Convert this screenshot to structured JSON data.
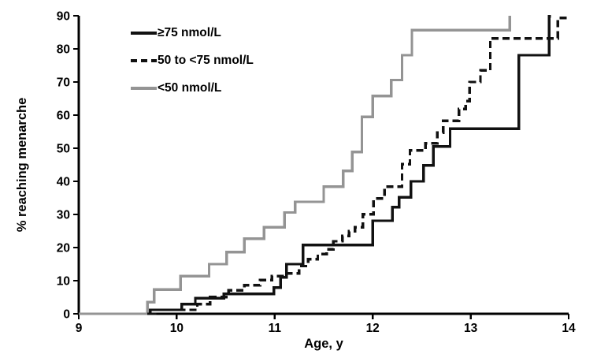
{
  "figure": {
    "background_color": "#ffffff",
    "axis_color": "#000000"
  },
  "chart_data": {
    "type": "line",
    "variant": "kaplan-meier-step",
    "title": "",
    "xlabel": "Age, y",
    "ylabel": "% reaching menarche",
    "xlim": [
      9,
      14
    ],
    "ylim": [
      0,
      90
    ],
    "xticks": [
      9,
      10,
      11,
      12,
      13,
      14
    ],
    "yticks": [
      0,
      10,
      20,
      30,
      40,
      50,
      60,
      70,
      80,
      90
    ],
    "grid": false,
    "legend": {
      "position": "inside-top-left"
    },
    "series": [
      {
        "name": "≥75 nmol/L",
        "line": "solid",
        "color": "#111111",
        "start_age": 9.7,
        "end_age": 13.82,
        "steps": [
          [
            9.73,
            1.2
          ],
          [
            10.05,
            2.9
          ],
          [
            10.19,
            4.7
          ],
          [
            10.48,
            6.0
          ],
          [
            10.99,
            7.9
          ],
          [
            11.06,
            11.0
          ],
          [
            11.12,
            15.0
          ],
          [
            11.29,
            20.8
          ],
          [
            12.0,
            28.1
          ],
          [
            12.2,
            32.2
          ],
          [
            12.27,
            35.2
          ],
          [
            12.39,
            40.0
          ],
          [
            12.52,
            44.8
          ],
          [
            12.62,
            50.5
          ],
          [
            12.79,
            55.9
          ],
          [
            13.49,
            78.1
          ],
          [
            13.8,
            89.8
          ]
        ]
      },
      {
        "name": "50 to <75 nmol/L",
        "line": "dashed",
        "color": "#111111",
        "start_age": 9.72,
        "end_age": 14.0,
        "steps": [
          [
            9.78,
            1.2
          ],
          [
            10.21,
            2.9
          ],
          [
            10.34,
            5.1
          ],
          [
            10.53,
            7.1
          ],
          [
            10.69,
            8.6
          ],
          [
            10.85,
            10.2
          ],
          [
            10.97,
            11.4
          ],
          [
            11.1,
            12.2
          ],
          [
            11.25,
            14.4
          ],
          [
            11.34,
            16.5
          ],
          [
            11.44,
            18.0
          ],
          [
            11.53,
            19.5
          ],
          [
            11.6,
            21.9
          ],
          [
            11.69,
            23.5
          ],
          [
            11.76,
            24.9
          ],
          [
            11.82,
            26.1
          ],
          [
            11.9,
            30.1
          ],
          [
            12.01,
            34.8
          ],
          [
            12.12,
            38.4
          ],
          [
            12.3,
            45.2
          ],
          [
            12.38,
            49.3
          ],
          [
            12.54,
            51.5
          ],
          [
            12.66,
            54.7
          ],
          [
            12.72,
            58.3
          ],
          [
            12.88,
            61.8
          ],
          [
            12.95,
            64.2
          ],
          [
            12.99,
            70.0
          ],
          [
            13.1,
            73.5
          ],
          [
            13.2,
            83.2
          ],
          [
            13.89,
            89.3
          ]
        ]
      },
      {
        "name": "<50 nmol/L",
        "line": "solid",
        "color": "#949494",
        "start_age": 9.0,
        "end_age": 13.4,
        "steps": [
          [
            9.7,
            3.5
          ],
          [
            9.77,
            7.3
          ],
          [
            10.04,
            11.4
          ],
          [
            10.33,
            15.0
          ],
          [
            10.51,
            18.6
          ],
          [
            10.69,
            22.7
          ],
          [
            10.89,
            26.1
          ],
          [
            11.1,
            30.6
          ],
          [
            11.21,
            33.8
          ],
          [
            11.5,
            38.4
          ],
          [
            11.7,
            43.2
          ],
          [
            11.79,
            48.9
          ],
          [
            11.89,
            59.5
          ],
          [
            12.0,
            65.8
          ],
          [
            12.19,
            70.6
          ],
          [
            12.3,
            78.1
          ],
          [
            12.4,
            85.7
          ],
          [
            13.4,
            90.0
          ]
        ]
      }
    ]
  }
}
